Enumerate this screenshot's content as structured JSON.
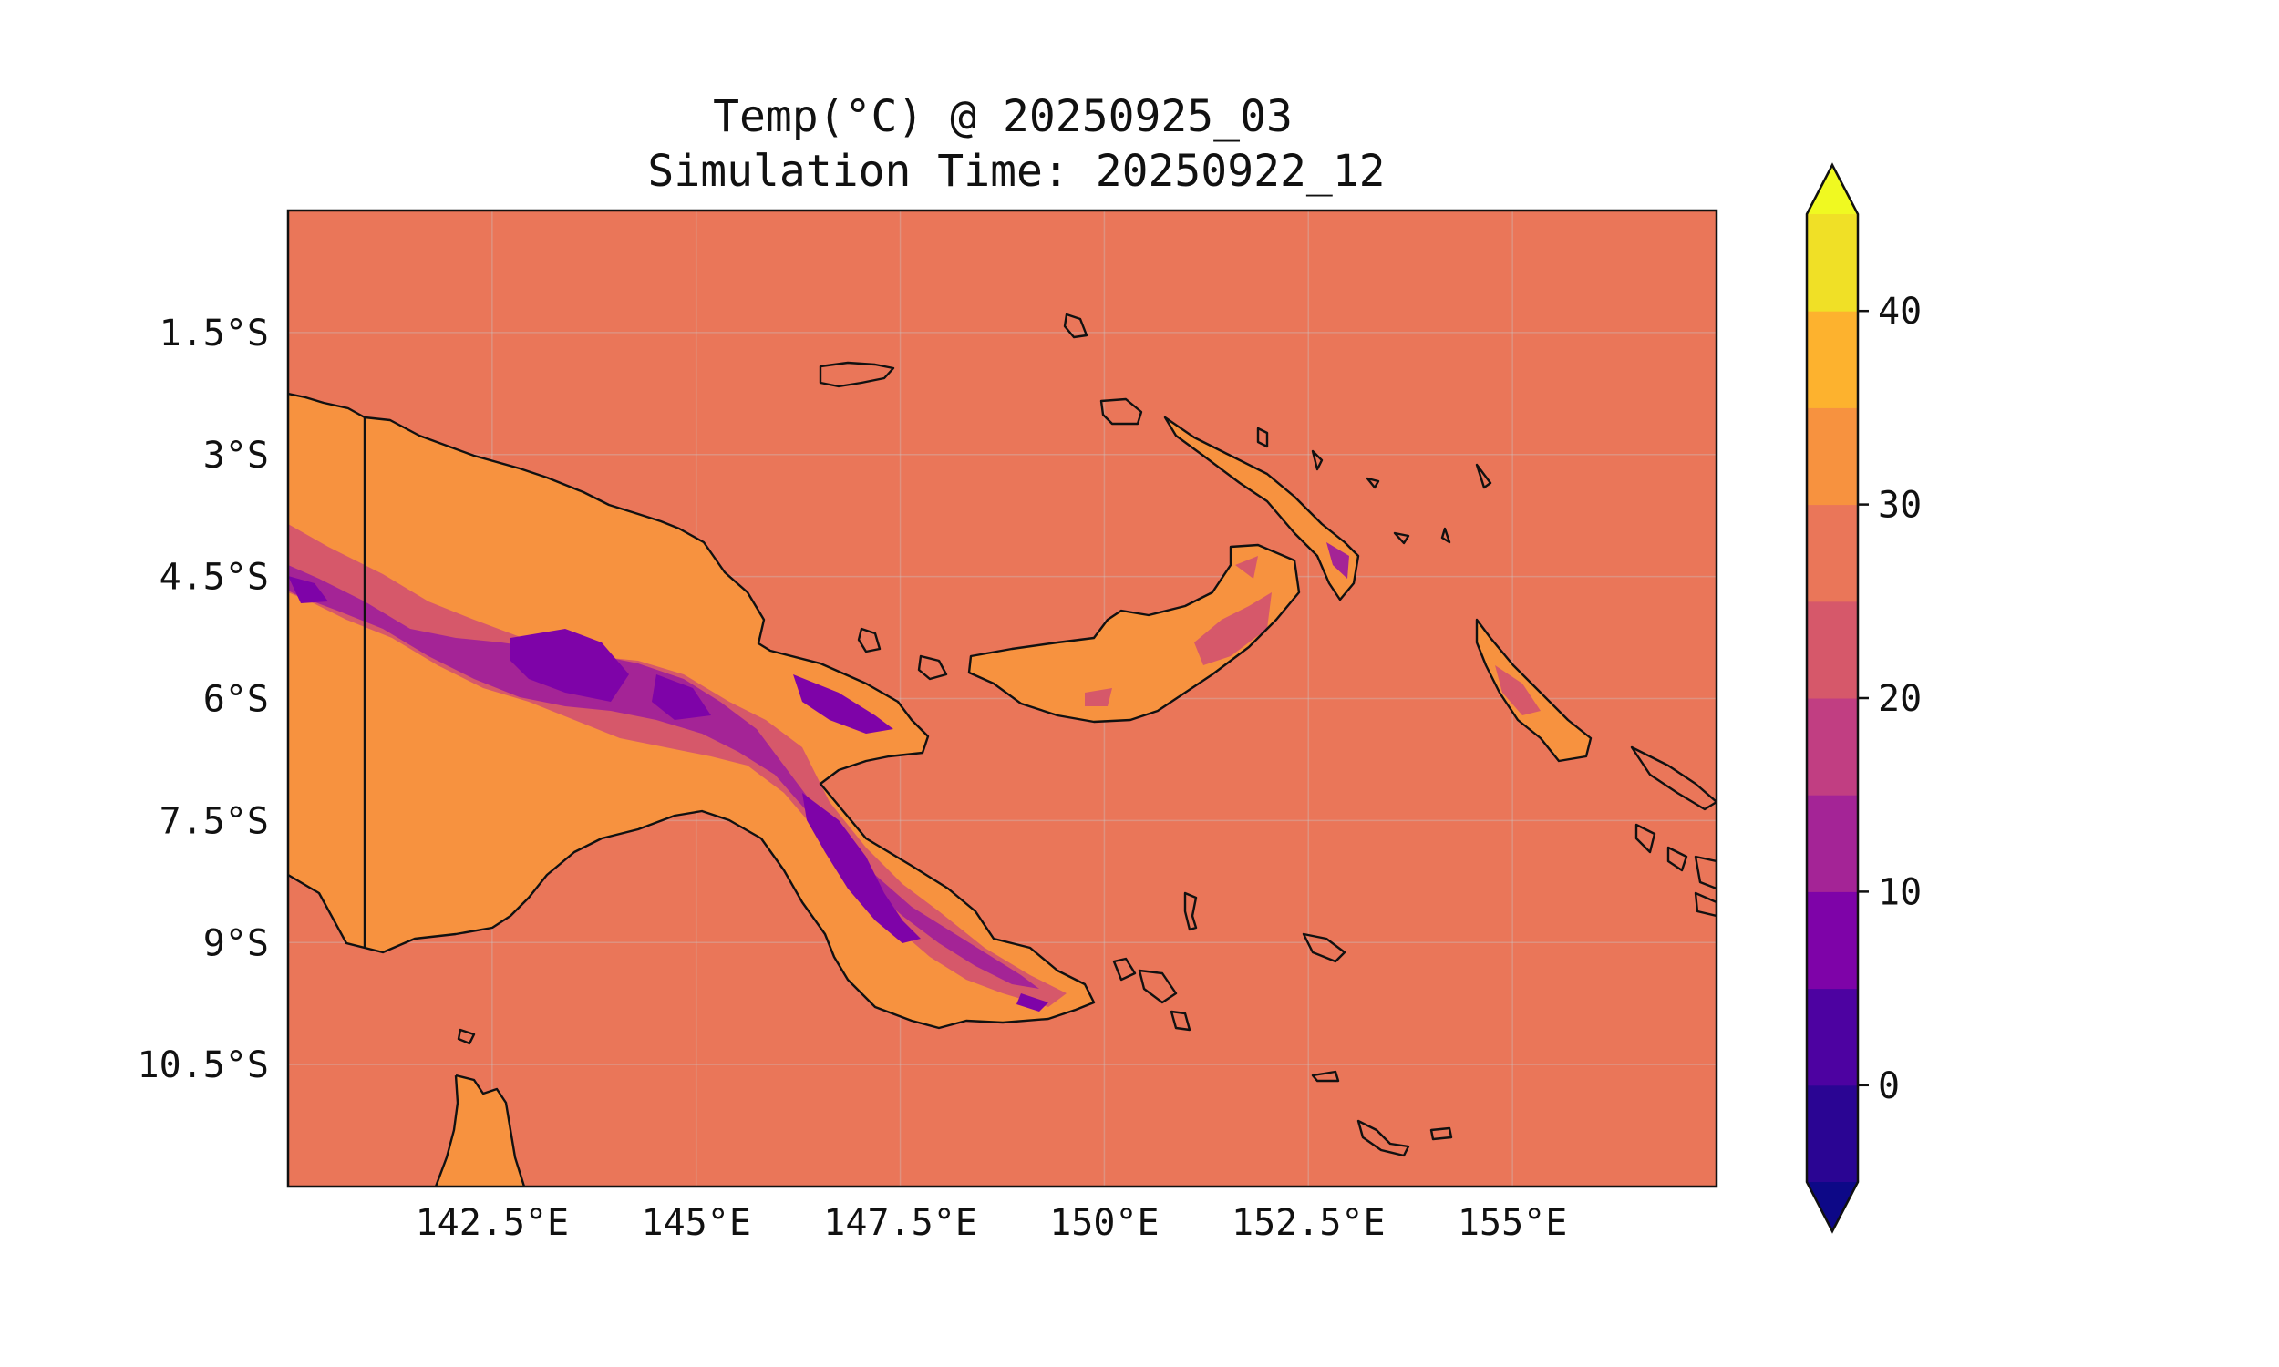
{
  "title": {
    "line1": "Temp(°C) @ 20250925_03",
    "line2": "Simulation Time: 20250922_12"
  },
  "map": {
    "region": "Papua New Guinea",
    "projection": "PlateCarree",
    "lon_range": [
      140.0,
      157.5
    ],
    "lat_range": [
      -12.0,
      0.0
    ],
    "x_ticks": [
      {
        "value": 142.5,
        "label": "142.5°E"
      },
      {
        "value": 145,
        "label": "145°E"
      },
      {
        "value": 147.5,
        "label": "147.5°E"
      },
      {
        "value": 150,
        "label": "150°E"
      },
      {
        "value": 152.5,
        "label": "152.5°E"
      },
      {
        "value": 155,
        "label": "155°E"
      }
    ],
    "y_ticks": [
      {
        "value": -1.5,
        "label": "1.5°S"
      },
      {
        "value": -3,
        "label": "3°S"
      },
      {
        "value": -4.5,
        "label": "4.5°S"
      },
      {
        "value": -6,
        "label": "6°S"
      },
      {
        "value": -7.5,
        "label": "7.5°S"
      },
      {
        "value": -9,
        "label": "9°S"
      },
      {
        "value": -10.5,
        "label": "10.5°S"
      }
    ],
    "gridlines": true
  },
  "colorbar": {
    "colormap": "plasma",
    "extend": "both",
    "levels": [
      -5,
      0,
      5,
      10,
      15,
      20,
      25,
      30,
      35,
      40,
      45
    ],
    "ticks": [
      {
        "value": 0,
        "label": "0"
      },
      {
        "value": 10,
        "label": "10"
      },
      {
        "value": 20,
        "label": "20"
      },
      {
        "value": 30,
        "label": "30"
      },
      {
        "value": 40,
        "label": "40"
      }
    ],
    "colors": [
      "#2a0593",
      "#4d02a1",
      "#7e03a8",
      "#a42496",
      "#c13e82",
      "#d6586a",
      "#ea7659",
      "#f7923f",
      "#fdb22e",
      "#f0e026"
    ],
    "under_color": "#0d0887",
    "over_color": "#f0f921"
  },
  "fields": {
    "ocean_level_color": "#ea7659",
    "lowland_color": "#f7923f",
    "highland_color": "#d6586a",
    "mountain_color": "#a42496",
    "peak_color": "#7e03a8"
  }
}
